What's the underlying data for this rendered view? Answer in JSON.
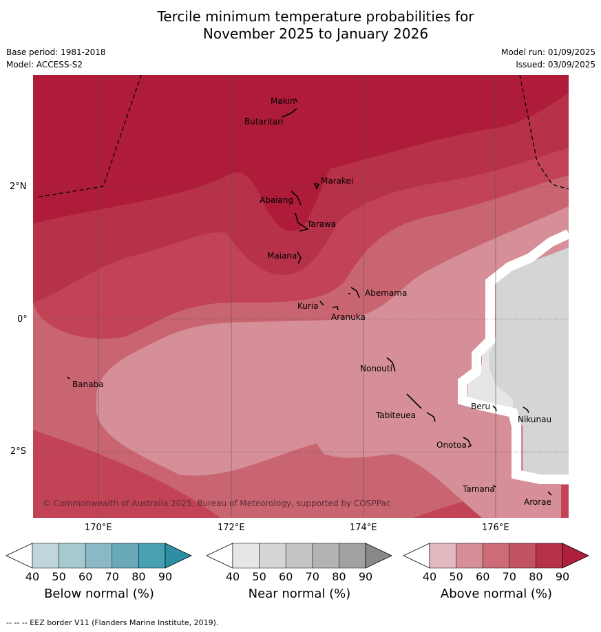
{
  "title_line1": "Tercile minimum temperature probabilities for",
  "title_line2": "November 2025 to January 2026",
  "base_period": "Base period: 1981-2018",
  "model": "Model: ACCESS-S2",
  "model_run": "Model run: 01/09/2025",
  "issued": "Issued: 03/09/2025",
  "lat_labels": [
    "2°N",
    "0°",
    "2°S"
  ],
  "lon_labels": [
    "170°E",
    "172°E",
    "174°E",
    "176°E"
  ],
  "places": [
    "Makin",
    "Butaritari",
    "Marakei",
    "Abaiang",
    "Tarawa",
    "Maiana",
    "Abemama",
    "Kuria",
    "Aranuka",
    "Banaba",
    "Nonouti",
    "Beru",
    "Nikunau",
    "Tabiteuea",
    "Onotoa",
    "Tamana",
    "Arorae"
  ],
  "copyright": "© Commonwealth of Australia 2025, Bureau of Meteorology, supported by COSPPac",
  "colorbars": [
    {
      "title": "Below normal (%)",
      "ticks": [
        "40",
        "50",
        "60",
        "70",
        "80",
        "90"
      ],
      "colors": [
        "#c0d5dc",
        "#a6c8d0",
        "#8ab9c5",
        "#6aa9b9",
        "#47a1b0",
        "#2e8fa3"
      ]
    },
    {
      "title": "Near normal (%)",
      "ticks": [
        "40",
        "50",
        "60",
        "70",
        "80",
        "90"
      ],
      "colors": [
        "#e6e6e6",
        "#d5d5d5",
        "#c5c5c5",
        "#b3b3b3",
        "#a1a1a1",
        "#898989"
      ]
    },
    {
      "title": "Above normal (%)",
      "ticks": [
        "40",
        "50",
        "60",
        "70",
        "80",
        "90"
      ],
      "colors": [
        "#e3b8bf",
        "#d68f98",
        "#cc6c77",
        "#c25362",
        "#b73148",
        "#ae1f3c"
      ]
    }
  ],
  "footnote": "--  --  -- EEZ border V11 (Flanders Marine Institute, 2019).",
  "colors": {
    "above_90": "#ae1c39",
    "above_80": "#b73148",
    "above_70": "#c24355",
    "above_60": "#c96570",
    "above_50": "#d68f98",
    "near_40": "#e6e6e6",
    "near_50": "#d5d5d5"
  }
}
